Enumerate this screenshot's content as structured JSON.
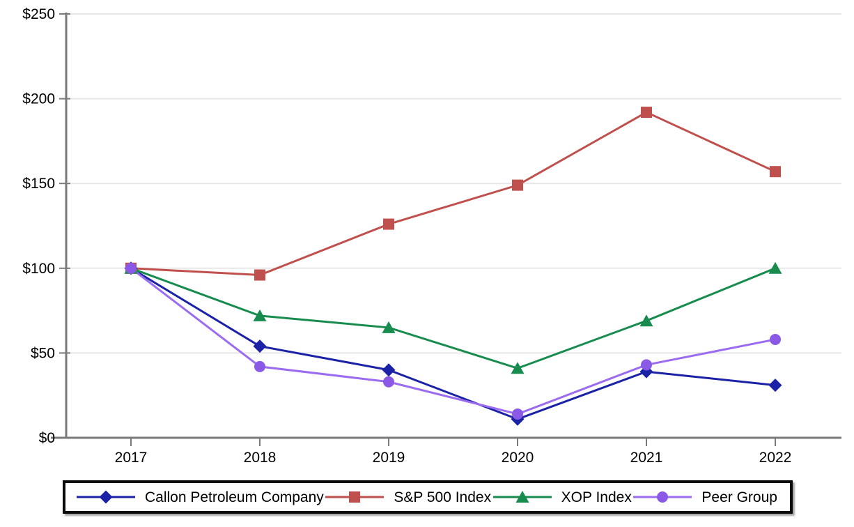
{
  "chart_data": {
    "type": "line",
    "title": "",
    "xlabel": "",
    "ylabel": "",
    "x_categories": [
      "2017",
      "2018",
      "2019",
      "2020",
      "2021",
      "2022"
    ],
    "ylim": [
      0,
      250
    ],
    "y_tick_step": 50,
    "y_tick_labels": [
      "$0",
      "$50",
      "$100",
      "$150",
      "$200",
      "$250"
    ],
    "grid": "horizontal",
    "gridline_color": "#e7e7e7",
    "axis_color": "#7a7a7a",
    "legend_position": "bottom",
    "series": [
      {
        "name": "Callon Petroleum Company",
        "marker": "diamond",
        "color": "#1b22a6",
        "line_color": "#1b22a6",
        "values": [
          100,
          54,
          40,
          11,
          39,
          31
        ]
      },
      {
        "name": "S&P 500 Index",
        "marker": "square",
        "color": "#c0504d",
        "line_color": "#c0504d",
        "values": [
          100,
          96,
          126,
          149,
          192,
          157
        ]
      },
      {
        "name": "XOP Index",
        "marker": "triangle",
        "color": "#188c4e",
        "line_color": "#188c4e",
        "values": [
          100,
          72,
          65,
          41,
          69,
          100
        ]
      },
      {
        "name": "Peer Group",
        "marker": "circle",
        "color": "#8a5ae6",
        "line_color": "#9b6cf0",
        "values": [
          100,
          42,
          33,
          14,
          43,
          58
        ]
      }
    ]
  }
}
